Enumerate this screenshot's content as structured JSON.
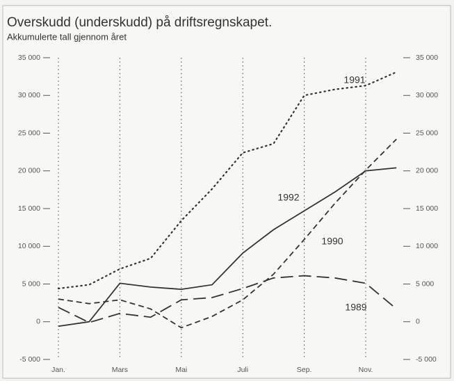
{
  "chart_data": {
    "type": "line",
    "title": "Overskudd (underskudd) på driftsregnskapet.",
    "subtitle": "Akkumulerte tall gjennom året",
    "categories": [
      "Jan.",
      null,
      "Mars",
      null,
      "Mai",
      null,
      "Juli",
      null,
      "Sep.",
      null,
      "Nov.",
      null
    ],
    "ylim": [
      -5000,
      35000
    ],
    "yticks": [
      {
        "value": -5000,
        "label": "-5 000"
      },
      0,
      {
        "value": 5000,
        "label": "5 000"
      },
      {
        "value": 10000,
        "label": "10 000"
      },
      {
        "value": 15000,
        "label": "15 000"
      },
      {
        "value": 20000,
        "label": "20 000"
      },
      {
        "value": 25000,
        "label": "25 000"
      },
      {
        "value": 30000,
        "label": "30 000"
      },
      {
        "value": 35000,
        "label": "35 000"
      }
    ],
    "right_axis": true,
    "grid": "x",
    "series": [
      {
        "name": "1991",
        "color": "#333333",
        "style": "dotted",
        "values": [
          4400,
          4900,
          7000,
          8400,
          13400,
          17600,
          22400,
          23600,
          30000,
          30800,
          31300,
          33100
        ]
      },
      {
        "name": "1992",
        "color": "#333333",
        "style": "solid",
        "values": [
          -600,
          0,
          5100,
          4600,
          4300,
          4900,
          9100,
          12200,
          14700,
          17200,
          20000,
          20400
        ]
      },
      {
        "name": "1990",
        "color": "#333333",
        "style": "dashed",
        "values": [
          3000,
          2400,
          2900,
          1700,
          -800,
          700,
          2900,
          6300,
          10900,
          15700,
          20100,
          24200
        ]
      },
      {
        "name": "1989",
        "color": "#333333",
        "style": "longdash",
        "values": [
          1900,
          -100,
          1100,
          600,
          2900,
          3200,
          4400,
          5800,
          6100,
          5800,
          5100,
          1700
        ]
      }
    ]
  }
}
